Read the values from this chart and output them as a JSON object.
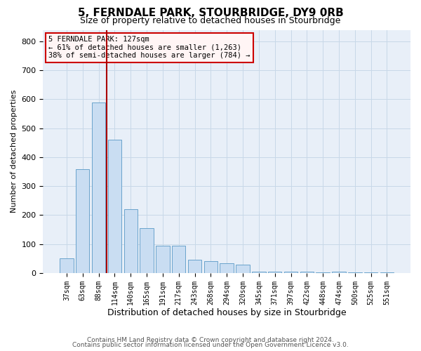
{
  "title": "5, FERNDALE PARK, STOURBRIDGE, DY9 0RB",
  "subtitle": "Size of property relative to detached houses in Stourbridge",
  "xlabel": "Distribution of detached houses by size in Stourbridge",
  "ylabel": "Number of detached properties",
  "categories": [
    "37sqm",
    "63sqm",
    "88sqm",
    "114sqm",
    "140sqm",
    "165sqm",
    "191sqm",
    "217sqm",
    "243sqm",
    "268sqm",
    "294sqm",
    "320sqm",
    "345sqm",
    "371sqm",
    "397sqm",
    "422sqm",
    "448sqm",
    "474sqm",
    "500sqm",
    "525sqm",
    "551sqm"
  ],
  "values": [
    50,
    358,
    590,
    460,
    220,
    155,
    95,
    95,
    45,
    40,
    35,
    30,
    5,
    5,
    5,
    4,
    3,
    5,
    3,
    3,
    3
  ],
  "bar_color": "#c9ddf2",
  "bar_edge_color": "#6aa3cc",
  "grid_color": "#c8d8e8",
  "background_color": "#e8eff8",
  "vline_color": "#aa0000",
  "vline_x": 2.5,
  "annotation_line1": "5 FERNDALE PARK: 127sqm",
  "annotation_line2": "← 61% of detached houses are smaller (1,263)",
  "annotation_line3": "38% of semi-detached houses are larger (784) →",
  "annotation_facecolor": "#fff5f5",
  "annotation_edgecolor": "#cc0000",
  "ylim": [
    0,
    840
  ],
  "yticks": [
    0,
    100,
    200,
    300,
    400,
    500,
    600,
    700,
    800
  ],
  "footer_line1": "Contains HM Land Registry data © Crown copyright and database right 2024.",
  "footer_line2": "Contains public sector information licensed under the Open Government Licence v3.0."
}
